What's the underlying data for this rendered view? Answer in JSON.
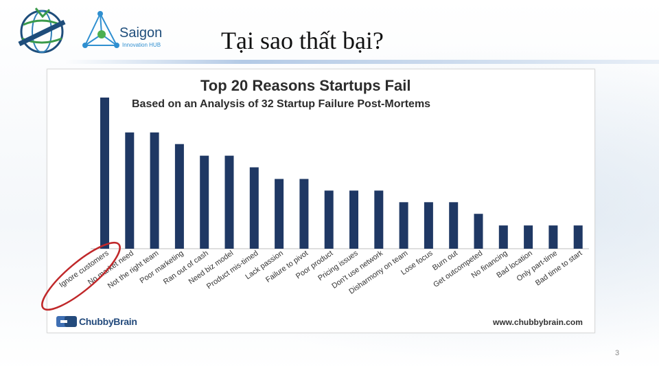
{
  "slide": {
    "title": "Tại sao thất bại?",
    "page_number": "3"
  },
  "logos": {
    "saigon_name": "Saigon",
    "saigon_sub": "Innovation HUB",
    "brand": "ChubbyBrain",
    "website": "www.chubbybrain.com"
  },
  "colors": {
    "bar": "#1f3864",
    "highlight_ring": "#c0282a"
  },
  "chart_data": {
    "type": "bar",
    "title": "Top 20 Reasons Startups Fail",
    "subtitle": "Based on an Analysis of 32 Startup Failure Post-Mortems",
    "categories": [
      "Ignore customers",
      "No market need",
      "Not the right team",
      "Poor marketing",
      "Ran out of cash",
      "Need biz model",
      "Product mis-timed",
      "Lack passion",
      "Failure to pivot",
      "Poor product",
      "Pricing issues",
      "Don't use network",
      "Disharmony on team",
      "Lose focus",
      "Burn out",
      "Get outcompeted",
      "No financing",
      "Bad location",
      "Only part-time",
      "Bad time to start"
    ],
    "values": [
      13,
      10,
      10,
      9,
      8,
      8,
      7,
      6,
      6,
      5,
      5,
      5,
      4,
      4,
      4,
      3,
      2,
      2,
      2,
      2
    ],
    "xlabel": "",
    "ylabel": "",
    "grid": false,
    "highlighted_category": "Ignore customers"
  }
}
